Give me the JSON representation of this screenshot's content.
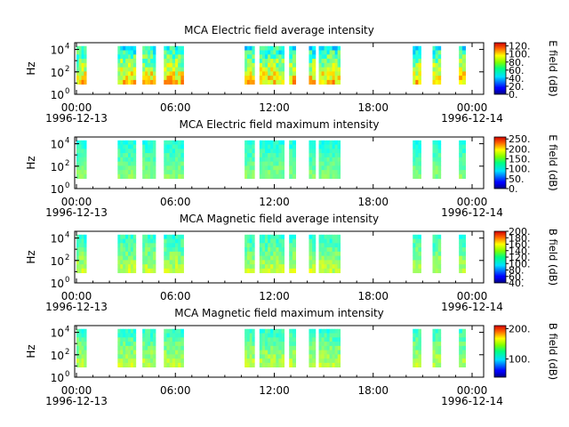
{
  "chart_data": [
    {
      "type": "heatmap",
      "title": "MCA  Electric field average intensity",
      "ylabel": "Hz",
      "y_scale": "log",
      "y_ticks": [
        "10",
        "10",
        "10"
      ],
      "y_tick_exponents": [
        "0",
        "2",
        "4"
      ],
      "x_tick_labels": [
        "00:00",
        "06:00",
        "12:00",
        "18:00",
        "00:00"
      ],
      "x_tick_hours": [
        0,
        6,
        12,
        18,
        24
      ],
      "date_start": "1996-12-13",
      "date_end": "1996-12-14",
      "colorbar": {
        "label": "E field (dB)",
        "range": [
          0,
          128
        ],
        "ticks": [
          "0.",
          "20.",
          "40.",
          "60.",
          "80.",
          "100.",
          "120."
        ],
        "tick_values": [
          0,
          20,
          40,
          60,
          80,
          100,
          120
        ]
      },
      "data_hours": [
        [
          0.0,
          0.6
        ],
        [
          2.5,
          3.6
        ],
        [
          4.0,
          4.8
        ],
        [
          5.3,
          6.5
        ],
        [
          10.2,
          10.8
        ],
        [
          11.1,
          12.6
        ],
        [
          12.9,
          13.3
        ],
        [
          14.1,
          14.5
        ],
        [
          14.7,
          16.0
        ],
        [
          20.4,
          20.9
        ],
        [
          21.6,
          22.1
        ],
        [
          23.2,
          23.6
        ]
      ],
      "level_range": [
        30,
        110
      ]
    },
    {
      "type": "heatmap",
      "title": "MCA  Electric field maximum intensity",
      "ylabel": "Hz",
      "y_scale": "log",
      "y_ticks": [
        "10",
        "10",
        "10"
      ],
      "y_tick_exponents": [
        "0",
        "2",
        "4"
      ],
      "x_tick_labels": [
        "00:00",
        "06:00",
        "12:00",
        "18:00",
        "00:00"
      ],
      "x_tick_hours": [
        0,
        6,
        12,
        18,
        24
      ],
      "date_start": "1996-12-13",
      "date_end": "1996-12-14",
      "colorbar": {
        "label": "E field (dB)",
        "range": [
          0,
          260
        ],
        "ticks": [
          "0.",
          "50.",
          "100.",
          "150.",
          "200.",
          "250."
        ],
        "tick_values": [
          0,
          50,
          100,
          150,
          200,
          250
        ]
      },
      "data_hours": [
        [
          0.0,
          0.6
        ],
        [
          2.5,
          3.6
        ],
        [
          4.0,
          4.8
        ],
        [
          5.3,
          6.5
        ],
        [
          10.2,
          10.8
        ],
        [
          11.1,
          12.6
        ],
        [
          12.9,
          13.3
        ],
        [
          14.1,
          14.5
        ],
        [
          14.7,
          16.0
        ],
        [
          20.4,
          20.9
        ],
        [
          21.6,
          22.1
        ],
        [
          23.2,
          23.6
        ]
      ],
      "level_range": [
        90,
        150
      ]
    },
    {
      "type": "heatmap",
      "title": "MCA  Magnetic field average intensity",
      "ylabel": "Hz",
      "y_scale": "log",
      "y_ticks": [
        "10",
        "10",
        "10"
      ],
      "y_tick_exponents": [
        "0",
        "2",
        "4"
      ],
      "x_tick_labels": [
        "00:00",
        "06:00",
        "12:00",
        "18:00",
        "00:00"
      ],
      "x_tick_hours": [
        0,
        6,
        12,
        18,
        24
      ],
      "date_start": "1996-12-13",
      "date_end": "1996-12-14",
      "colorbar": {
        "label": "B field (dB)",
        "range": [
          40,
          200
        ],
        "ticks": [
          "40.",
          "60.",
          "80.",
          "100.",
          "120.",
          "140.",
          "160.",
          "180.",
          "200."
        ],
        "tick_values": [
          40,
          60,
          80,
          100,
          120,
          140,
          160,
          180,
          200
        ]
      },
      "data_hours": [
        [
          0.0,
          0.6
        ],
        [
          2.5,
          3.6
        ],
        [
          4.0,
          4.8
        ],
        [
          5.3,
          6.5
        ],
        [
          10.2,
          10.8
        ],
        [
          11.1,
          12.6
        ],
        [
          12.9,
          13.3
        ],
        [
          14.1,
          14.5
        ],
        [
          14.7,
          16.0
        ],
        [
          20.4,
          20.9
        ],
        [
          21.6,
          22.1
        ],
        [
          23.2,
          23.6
        ]
      ],
      "level_range": [
        95,
        145
      ]
    },
    {
      "type": "heatmap",
      "title": "MCA  Magnetic field maximum intensity",
      "ylabel": "Hz",
      "y_scale": "log",
      "y_ticks": [
        "10",
        "10",
        "10"
      ],
      "y_tick_exponents": [
        "0",
        "2",
        "4"
      ],
      "x_tick_labels": [
        "00:00",
        "06:00",
        "12:00",
        "18:00",
        "00:00"
      ],
      "x_tick_hours": [
        0,
        6,
        12,
        18,
        24
      ],
      "date_start": "1996-12-13",
      "date_end": "1996-12-14",
      "colorbar": {
        "label": "B field (dB)",
        "range": [
          40,
          210
        ],
        "ticks": [
          "100.",
          "200."
        ],
        "tick_values": [
          100,
          200
        ]
      },
      "data_hours": [
        [
          0.0,
          0.6
        ],
        [
          2.5,
          3.6
        ],
        [
          4.0,
          4.8
        ],
        [
          5.3,
          6.5
        ],
        [
          10.2,
          10.8
        ],
        [
          11.1,
          12.6
        ],
        [
          12.9,
          13.3
        ],
        [
          14.1,
          14.5
        ],
        [
          14.7,
          16.0
        ],
        [
          20.4,
          20.9
        ],
        [
          21.6,
          22.1
        ],
        [
          23.2,
          23.6
        ]
      ],
      "level_range": [
        100,
        150
      ]
    }
  ]
}
